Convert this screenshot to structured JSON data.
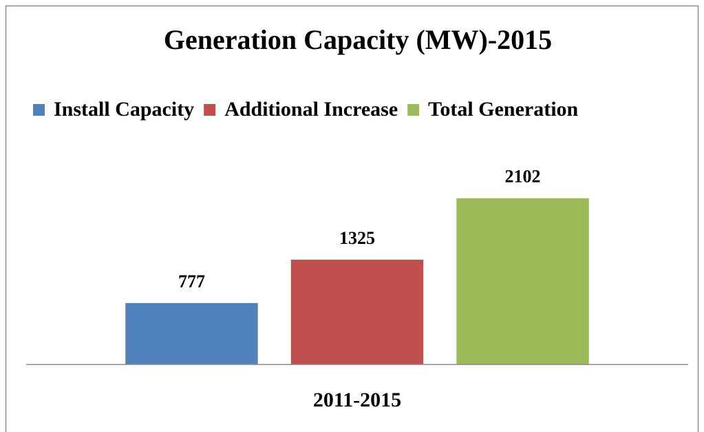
{
  "chart_data": {
    "type": "bar",
    "title": "Generation Capacity (MW)-2015",
    "categories": [
      "2011-2015"
    ],
    "series": [
      {
        "name": "Install Capacity",
        "color": "#4f81bd",
        "values": [
          777
        ]
      },
      {
        "name": "Additional Increase",
        "color": "#c0504d",
        "values": [
          1325
        ]
      },
      {
        "name": "Total Generation",
        "color": "#9bbb59",
        "values": [
          2102
        ]
      }
    ],
    "ylim": [
      0,
      2500
    ],
    "legend": "top"
  }
}
